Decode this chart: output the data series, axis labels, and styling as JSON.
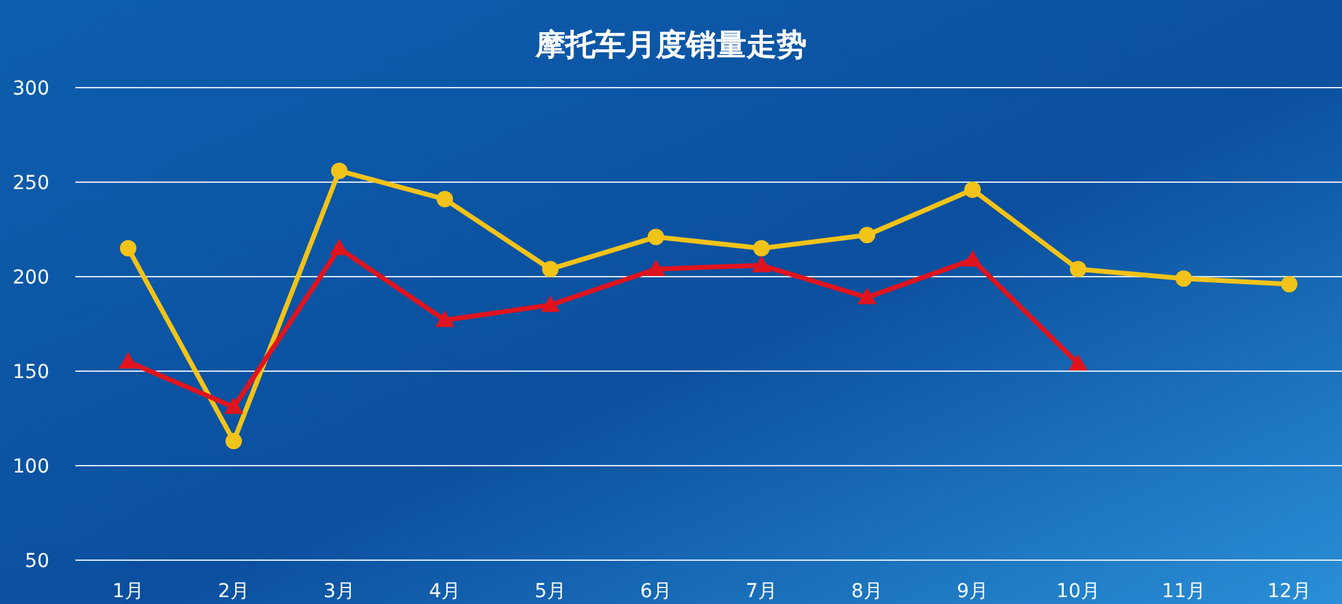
{
  "chart_data": {
    "type": "line",
    "title": "摩托车月度销量走势",
    "categories": [
      "1月",
      "2月",
      "3月",
      "4月",
      "5月",
      "6月",
      "7月",
      "8月",
      "9月",
      "10月",
      "11月",
      "12月"
    ],
    "series": [
      {
        "color": "#f2c318",
        "marker": "circle",
        "values": [
          215,
          113,
          256,
          241,
          204,
          221,
          215,
          222,
          246,
          204,
          199,
          196
        ]
      },
      {
        "color": "#e0141e",
        "marker": "triangle",
        "values": [
          155,
          131,
          215,
          177,
          185,
          204,
          206,
          189,
          209,
          154,
          null,
          null
        ]
      }
    ],
    "ylim": [
      50,
      300
    ],
    "yticks": [
      50,
      100,
      150,
      200,
      250,
      300
    ],
    "grid": "y",
    "line_style": "solid"
  }
}
